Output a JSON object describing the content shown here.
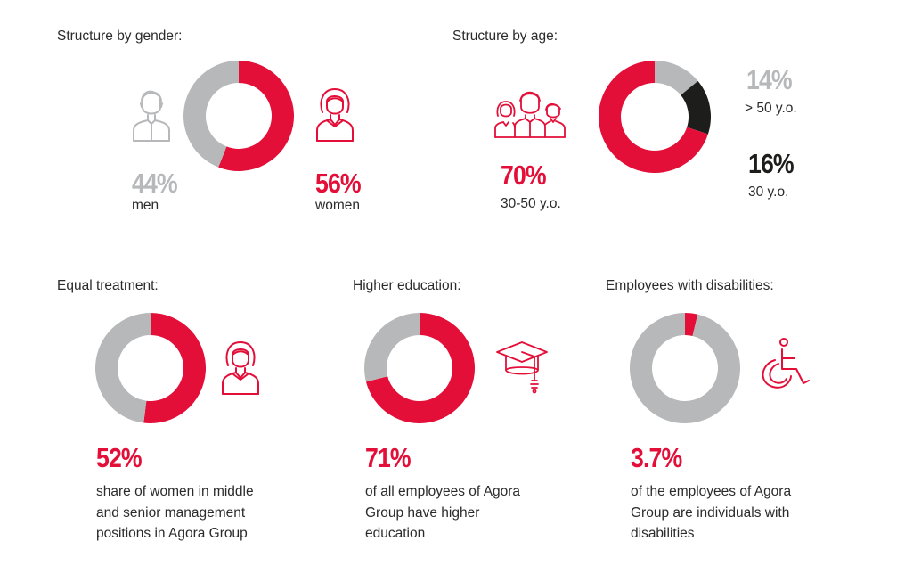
{
  "colors": {
    "accent": "#e30f38",
    "gray": "#b7b8ba",
    "black": "#1d1d1b"
  },
  "chart_data": [
    {
      "type": "pie",
      "title": "Structure by gender:",
      "slices": [
        {
          "label": "women",
          "value": 56,
          "display": "56%",
          "color": "#e30f38"
        },
        {
          "label": "men",
          "value": 44,
          "display": "44%",
          "color": "#b7b8ba"
        }
      ]
    },
    {
      "type": "pie",
      "title": "Structure by age:",
      "slices": [
        {
          "label": "> 50 y.o.",
          "value": 14,
          "display": "14%",
          "color": "#b7b8ba"
        },
        {
          "label": "30 y.o.",
          "value": 16,
          "display": "16%",
          "color": "#1d1d1b"
        },
        {
          "label": "30-50 y.o.",
          "value": 70,
          "display": "70%",
          "color": "#e30f38"
        }
      ]
    },
    {
      "type": "pie",
      "title": "Equal treatment:",
      "value": 52,
      "display": "52%",
      "description": [
        "share of women in middle",
        "and senior management",
        "positions in Agora Group"
      ]
    },
    {
      "type": "pie",
      "title": "Higher education:",
      "value": 71,
      "display": "71%",
      "description": [
        "of all employees of Agora",
        "Group have higher",
        "education"
      ]
    },
    {
      "type": "pie",
      "title": "Employees with disabilities:",
      "value": 3.7,
      "display": "3.7%",
      "description": [
        "of the employees of Agora",
        "Group are individuals with",
        "disabilities"
      ]
    }
  ],
  "icons": {
    "man": "man-icon",
    "woman": "woman-icon",
    "group": "people-group-icon",
    "graduation": "graduation-cap-icon",
    "wheelchair": "wheelchair-icon"
  }
}
